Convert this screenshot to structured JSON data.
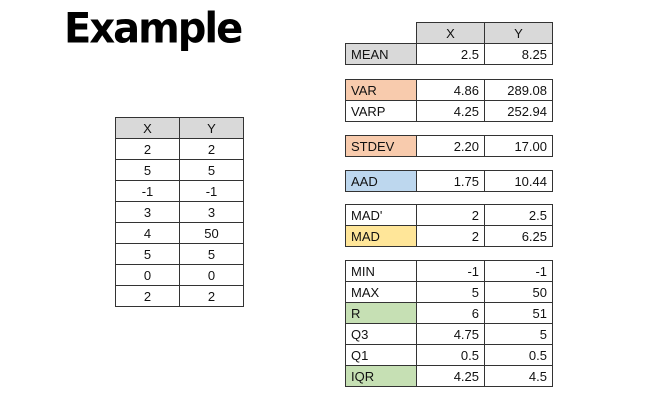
{
  "title": "Example",
  "left_table": {
    "headers": [
      "X",
      "Y"
    ],
    "rows": [
      [
        "2",
        "2"
      ],
      [
        "5",
        "5"
      ],
      [
        "-1",
        "-1"
      ],
      [
        "3",
        "3"
      ],
      [
        "4",
        "50"
      ],
      [
        "5",
        "5"
      ],
      [
        "0",
        "0"
      ],
      [
        "2",
        "2"
      ]
    ]
  },
  "stats": {
    "headers": [
      "X",
      "Y"
    ],
    "mean": {
      "label": "MEAN",
      "x": "2.5",
      "y": "8.25"
    },
    "var": {
      "label": "VAR",
      "x": "4.86",
      "y": "289.08"
    },
    "varp": {
      "label": "VARP",
      "x": "4.25",
      "y": "252.94"
    },
    "stdev": {
      "label": "STDEV",
      "x": "2.20",
      "y": "17.00"
    },
    "aad": {
      "label": "AAD",
      "x": "1.75",
      "y": "10.44"
    },
    "madp": {
      "label": "MAD'",
      "x": "2",
      "y": "2.5"
    },
    "mad": {
      "label": "MAD",
      "x": "2",
      "y": "6.25"
    },
    "min": {
      "label": "MIN",
      "x": "-1",
      "y": "-1"
    },
    "max": {
      "label": "MAX",
      "x": "5",
      "y": "50"
    },
    "r": {
      "label": "R",
      "x": "6",
      "y": "51"
    },
    "q3": {
      "label": "Q3",
      "x": "4.75",
      "y": "5"
    },
    "q1": {
      "label": "Q1",
      "x": "0.5",
      "y": "0.5"
    },
    "iqr": {
      "label": "IQR",
      "x": "4.25",
      "y": "4.5"
    }
  },
  "colors": {
    "header_gray": "#d9d9d9",
    "variance_orange": "#f8cbad",
    "aad_blue": "#bdd7ee",
    "mad_yellow": "#ffe699",
    "range_green": "#c6e0b4"
  }
}
